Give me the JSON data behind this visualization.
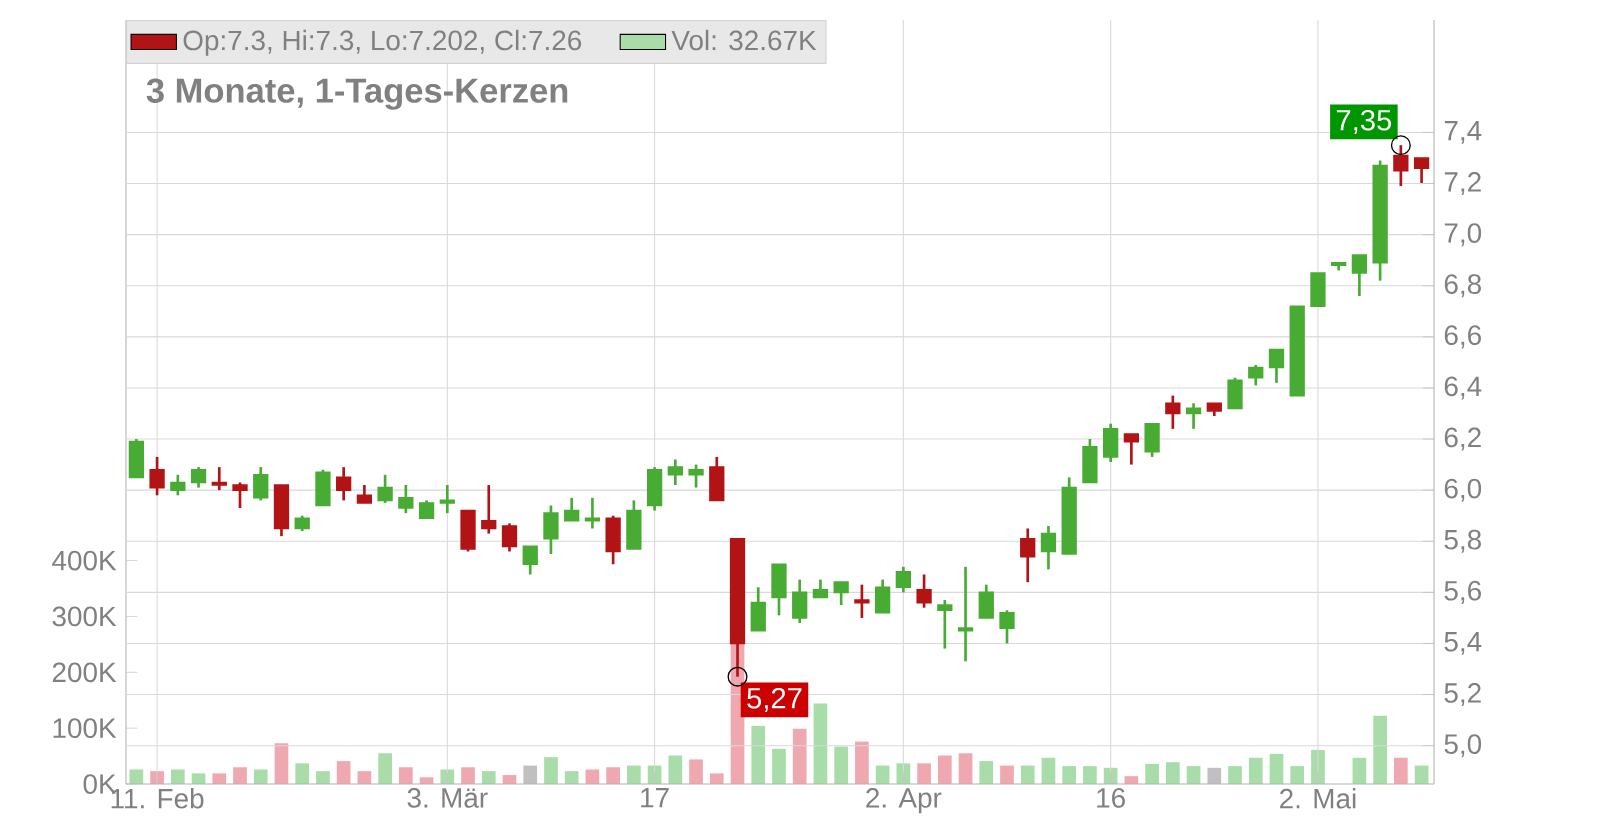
{
  "chart_data": {
    "type": "candlestick",
    "title": "3 Monate, 1-Tages-Kerzen",
    "categories": [
      null,
      "11. Feb",
      null,
      null,
      null,
      null,
      null,
      null,
      null,
      null,
      null,
      null,
      null,
      null,
      null,
      "3. Mär",
      null,
      null,
      null,
      null,
      null,
      null,
      null,
      null,
      null,
      "17",
      null,
      null,
      null,
      null,
      null,
      null,
      null,
      null,
      null,
      null,
      null,
      "2. Apr",
      null,
      null,
      null,
      null,
      null,
      null,
      null,
      null,
      null,
      "16",
      null,
      null,
      null,
      null,
      null,
      null,
      null,
      null,
      null,
      "2. Mai",
      null,
      null,
      null,
      null,
      null
    ],
    "series": [
      {
        "name": "Op:7.3, Hi:7.3, Lo:7.202, Cl:7.26",
        "color": "#b21416",
        "ohlc": [
          [
            6.05,
            6.2,
            6.05,
            6.19
          ],
          [
            6.08,
            6.13,
            5.98,
            6.01
          ],
          [
            6.0,
            6.06,
            5.98,
            6.03
          ],
          [
            6.03,
            6.09,
            6.01,
            6.08
          ],
          [
            6.03,
            6.09,
            6.0,
            6.02
          ],
          [
            6.02,
            6.03,
            5.93,
            6.0
          ],
          [
            5.97,
            6.09,
            5.96,
            6.06
          ],
          [
            6.02,
            6.02,
            5.82,
            5.85
          ],
          [
            5.85,
            5.9,
            5.84,
            5.89
          ],
          [
            5.94,
            6.08,
            5.94,
            6.07
          ],
          [
            6.05,
            6.09,
            5.96,
            6.0
          ],
          [
            5.98,
            6.02,
            5.95,
            5.95
          ],
          [
            5.96,
            6.06,
            5.95,
            6.01
          ],
          [
            5.93,
            6.02,
            5.91,
            5.97
          ],
          [
            5.89,
            5.96,
            5.89,
            5.95
          ],
          [
            5.95,
            6.02,
            5.91,
            5.96
          ],
          [
            5.92,
            5.92,
            5.76,
            5.77
          ],
          [
            5.88,
            6.02,
            5.83,
            5.85
          ],
          [
            5.86,
            5.87,
            5.76,
            5.78
          ],
          [
            5.71,
            5.78,
            5.67,
            5.78
          ],
          [
            5.81,
            5.94,
            5.75,
            5.91
          ],
          [
            5.88,
            5.97,
            5.88,
            5.92
          ],
          [
            5.88,
            5.97,
            5.85,
            5.89
          ],
          [
            5.89,
            5.9,
            5.71,
            5.76
          ],
          [
            5.77,
            5.96,
            5.77,
            5.92
          ],
          [
            5.94,
            6.09,
            5.92,
            6.08
          ],
          [
            6.06,
            6.12,
            6.02,
            6.09
          ],
          [
            6.06,
            6.1,
            6.01,
            6.08
          ],
          [
            6.09,
            6.13,
            5.96,
            5.96
          ],
          [
            5.81,
            5.81,
            5.27,
            5.4
          ],
          [
            5.45,
            5.62,
            5.45,
            5.56
          ],
          [
            5.58,
            5.71,
            5.51,
            5.71
          ],
          [
            5.5,
            5.65,
            5.48,
            5.6
          ],
          [
            5.58,
            5.65,
            5.58,
            5.61
          ],
          [
            5.6,
            5.64,
            5.55,
            5.64
          ],
          [
            5.57,
            5.63,
            5.5,
            5.56
          ],
          [
            5.52,
            5.65,
            5.52,
            5.62
          ],
          [
            5.62,
            5.7,
            5.6,
            5.68
          ],
          [
            5.61,
            5.67,
            5.54,
            5.56
          ],
          [
            5.53,
            5.57,
            5.38,
            5.55
          ],
          [
            5.45,
            5.7,
            5.33,
            5.46
          ],
          [
            5.5,
            5.63,
            5.5,
            5.6
          ],
          [
            5.46,
            5.53,
            5.4,
            5.52
          ],
          [
            5.81,
            5.85,
            5.64,
            5.74
          ],
          [
            5.76,
            5.86,
            5.69,
            5.83
          ],
          [
            5.75,
            6.05,
            5.75,
            6.01
          ],
          [
            6.03,
            6.2,
            6.03,
            6.17
          ],
          [
            6.13,
            6.26,
            6.11,
            6.24
          ],
          [
            6.22,
            6.22,
            6.1,
            6.19
          ],
          [
            6.15,
            6.26,
            6.13,
            6.26
          ],
          [
            6.34,
            6.37,
            6.24,
            6.3
          ],
          [
            6.3,
            6.34,
            6.24,
            6.32
          ],
          [
            6.34,
            6.34,
            6.29,
            6.31
          ],
          [
            6.32,
            6.44,
            6.32,
            6.43
          ],
          [
            6.44,
            6.49,
            6.41,
            6.48
          ],
          [
            6.48,
            6.55,
            6.42,
            6.55
          ],
          [
            6.37,
            6.72,
            6.37,
            6.72
          ],
          [
            6.72,
            6.85,
            6.72,
            6.85
          ],
          [
            6.88,
            6.89,
            6.86,
            6.89
          ],
          [
            6.85,
            6.92,
            6.76,
            6.92
          ],
          [
            6.89,
            7.29,
            6.82,
            7.27
          ],
          [
            7.31,
            7.35,
            7.19,
            7.25
          ],
          [
            7.3,
            7.3,
            7.202,
            7.26
          ]
        ],
        "colors": [
          "#48ac34",
          "#b21416",
          "#48ac34",
          "#48ac34",
          "#b21416",
          "#b21416",
          "#48ac34",
          "#b21416",
          "#48ac34",
          "#48ac34",
          "#b21416",
          "#b21416",
          "#48ac34",
          "#48ac34",
          "#48ac34",
          "#48ac34",
          "#b21416",
          "#b21416",
          "#b21416",
          "#48ac34",
          "#48ac34",
          "#48ac34",
          "#48ac34",
          "#b21416",
          "#48ac34",
          "#48ac34",
          "#48ac34",
          "#48ac34",
          "#b21416",
          "#b21416",
          "#48ac34",
          "#48ac34",
          "#48ac34",
          "#48ac34",
          "#48ac34",
          "#b21416",
          "#48ac34",
          "#48ac34",
          "#b21416",
          "#48ac34",
          "#48ac34",
          "#48ac34",
          "#48ac34",
          "#b21416",
          "#48ac34",
          "#48ac34",
          "#48ac34",
          "#48ac34",
          "#b21416",
          "#48ac34",
          "#b21416",
          "#48ac34",
          "#b21416",
          "#48ac34",
          "#48ac34",
          "#48ac34",
          "#48ac34",
          "#48ac34",
          "#48ac34",
          "#48ac34",
          "#48ac34",
          "#b21416",
          "#b21416"
        ]
      },
      {
        "type": "bar",
        "name": "Vol: 32.67K",
        "axis": "y2",
        "color": "#a8dca8",
        "values": [
          26,
          23,
          26,
          19,
          19,
          30,
          26,
          73,
          37,
          23,
          41,
          23,
          55,
          30,
          12,
          26,
          30,
          23,
          16,
          33,
          48,
          23,
          26,
          30,
          33,
          33,
          51,
          44,
          19,
          253,
          104,
          63,
          99,
          144,
          67,
          76,
          33,
          37,
          37,
          51,
          55,
          41,
          33,
          33,
          47,
          32,
          32,
          29,
          14,
          36,
          39,
          32,
          29,
          32,
          47,
          54,
          32,
          61,
          null,
          47,
          122,
          47,
          33
        ],
        "colors": [
          "#a8dca8",
          "#f0a8b0",
          "#a8dca8",
          "#a8dca8",
          "#f0a8b0",
          "#f0a8b0",
          "#a8dca8",
          "#f0a8b0",
          "#a8dca8",
          "#a8dca8",
          "#f0a8b0",
          "#f0a8b0",
          "#a8dca8",
          "#f0a8b0",
          "#f0a8b0",
          "#a8dca8",
          "#f0a8b0",
          "#a8dca8",
          "#f0a8b0",
          "#c0c0c0",
          "#a8dca8",
          "#a8dca8",
          "#f0a8b0",
          "#f0a8b0",
          "#a8dca8",
          "#a8dca8",
          "#a8dca8",
          "#f0a8b0",
          "#f0a8b0",
          "#f0a8b0",
          "#a8dca8",
          "#a8dca8",
          "#f0a8b0",
          "#a8dca8",
          "#a8dca8",
          "#f0a8b0",
          "#a8dca8",
          "#a8dca8",
          "#f0a8b0",
          "#f0a8b0",
          "#f0a8b0",
          "#a8dca8",
          "#f0a8b0",
          "#a8dca8",
          "#a8dca8",
          "#a8dca8",
          "#a8dca8",
          "#a8dca8",
          "#f0a8b0",
          "#a8dca8",
          "#a8dca8",
          "#a8dca8",
          "#c0c0c0",
          "#a8dca8",
          "#a8dca8",
          "#a8dca8",
          "#a8dca8",
          "#a8dca8",
          "#a8dca8",
          "#a8dca8",
          "#a8dca8",
          "#f0a8b0",
          "#a8dca8"
        ]
      }
    ],
    "ylim": [
      4.85,
      7.84
    ],
    "yticks": [
      {
        "value": 5.0,
        "label": "5,0"
      },
      {
        "value": 5.2,
        "label": "5,2"
      },
      {
        "value": 5.4,
        "label": "5,4"
      },
      {
        "value": 5.6,
        "label": "5,6"
      },
      {
        "value": 5.8,
        "label": "5,8"
      },
      {
        "value": 6.0,
        "label": "6,0"
      },
      {
        "value": 6.2,
        "label": "6,2"
      },
      {
        "value": 6.4,
        "label": "6,4"
      },
      {
        "value": 6.6,
        "label": "6,6"
      },
      {
        "value": 6.8,
        "label": "6,8"
      },
      {
        "value": 7.0,
        "label": "7,0"
      },
      {
        "value": 7.2,
        "label": "7,2"
      },
      {
        "value": 7.4,
        "label": "7,4"
      }
    ],
    "y2lim": [
      0,
      1368
    ],
    "y2ticks": [
      {
        "value": 0,
        "label": "0K"
      },
      {
        "value": 100,
        "label": "100K"
      },
      {
        "value": 200,
        "label": "200K"
      },
      {
        "value": 300,
        "label": "300K"
      },
      {
        "value": 400,
        "label": "400K"
      }
    ],
    "annotations": [
      "7,35",
      "5,27"
    ],
    "grid": true,
    "legend": "top left"
  }
}
